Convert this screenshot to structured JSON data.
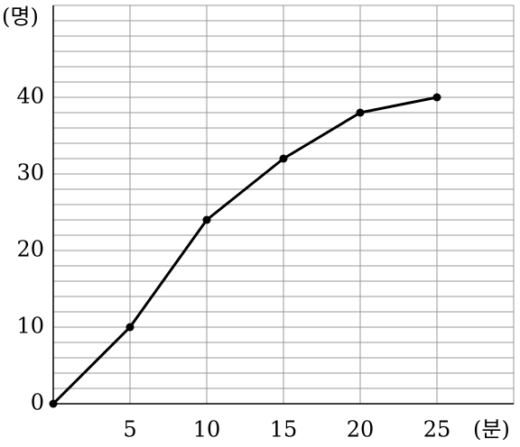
{
  "chart_data": {
    "type": "line",
    "x": [
      0,
      5,
      10,
      15,
      20,
      25
    ],
    "series": [
      {
        "name": null,
        "color": "#000000",
        "values": [
          0,
          10,
          24,
          32,
          38,
          40
        ]
      }
    ],
    "xlim": [
      0,
      30
    ],
    "ylim": [
      0,
      52
    ],
    "xticks": [
      5,
      10,
      15,
      20,
      25
    ],
    "yticks": [
      0,
      10,
      20,
      30,
      40
    ],
    "yminorticks": [
      2,
      4,
      6,
      8,
      12,
      14,
      16,
      18,
      22,
      24,
      26,
      28,
      32,
      34,
      36,
      38,
      42,
      44,
      46,
      48,
      50,
      52
    ],
    "y_label": "(명)",
    "x_label": "(분)",
    "grid": true
  }
}
